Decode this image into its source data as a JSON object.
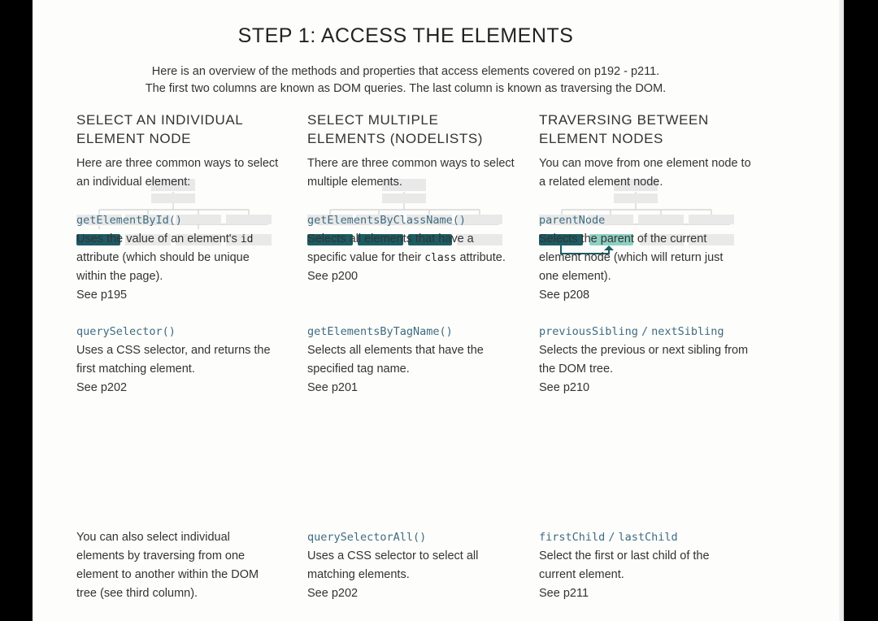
{
  "title": "STEP 1: ACCESS THE ELEMENTS",
  "intro": {
    "line1": "Here is an overview of the methods and properties that access elements covered on p192 - p211.",
    "line2": "The first two columns are known as DOM queries. The last column is known as traversing the DOM."
  },
  "colors": {
    "dark_teal": "#1d5b66",
    "mid_teal": "#1b5d63",
    "light_teal": "#8fd0c2",
    "ghost": "#e9e9e9",
    "line": "#cfcfcf",
    "code": "#3e6b7f"
  },
  "columns": [
    {
      "heading": [
        "SELECT AN INDIVIDUAL",
        "ELEMENT NODE"
      ],
      "lead": "Here are three common ways to select an individual element:",
      "entries": [
        {
          "code": "getElementById()",
          "desc_before": "Uses the value of an element's",
          "inline_code": "id",
          "desc_after": "attribute (which should be unique within the page).",
          "see": "See p195"
        },
        {
          "code": "querySelector()",
          "desc": "Uses a CSS selector, and returns the first matching element.",
          "see": "See p202"
        },
        {
          "desc": "You can also select individual elements by traversing from one element to another within the DOM tree (see third column)."
        }
      ]
    },
    {
      "heading": [
        "SELECT MULTIPLE",
        "ELEMENTS (NODELISTS)"
      ],
      "lead": "There are three common ways to select multiple elements.",
      "entries": [
        {
          "code": "getElementsByClassName()",
          "desc_before": "Selects all elements that have a specific value for their",
          "inline_code": "class",
          "desc_after": "attribute.",
          "see": "See p200"
        },
        {
          "code": "getElementsByTagName()",
          "desc": "Selects all elements that have the specified tag name.",
          "see": "See p201"
        },
        {
          "code": "querySelectorAll()",
          "desc": "Uses a CSS selector to select all matching elements.",
          "see": "See p202"
        }
      ]
    },
    {
      "heading": [
        "TRAVERSING BETWEEN",
        "ELEMENT NODES"
      ],
      "lead": "You can move from one element node to a related element node.",
      "entries": [
        {
          "code": "parentNode",
          "desc": "Selects the parent of the current element node (which will return just one element).",
          "see": "See p208"
        },
        {
          "code": "previousSibling",
          "code_sep": "/",
          "code2": "nextSibling",
          "desc": "Selects the previous or next sibling from the DOM tree.",
          "see": "See p210"
        },
        {
          "code": "firstChild",
          "code_sep": "/",
          "code2": "lastChild",
          "desc": "Select the first or last child of the current element.",
          "see": "See p211"
        }
      ]
    }
  ]
}
